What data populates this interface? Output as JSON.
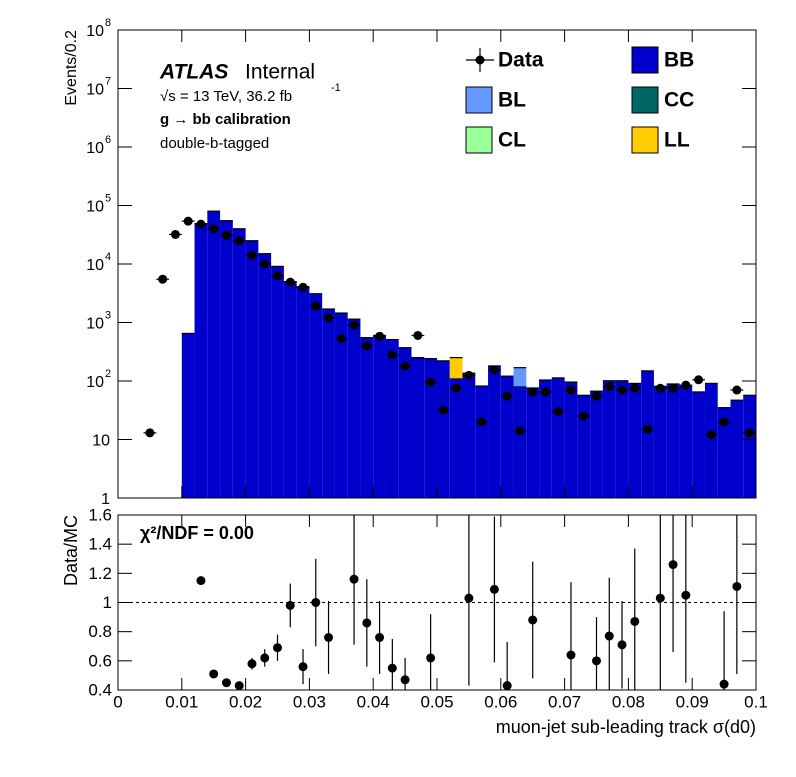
{
  "chart_data": [
    {
      "type": "stacked-histogram",
      "ylabel": "Events/0.2",
      "annotations": {
        "experiment": "ATLAS",
        "status": "Internal",
        "energy": "√s = 13 TeV, 36.2 fb",
        "energy_exponent": "-1",
        "selection": "g → bb calibration",
        "tagging": "double-b-tagged"
      },
      "log": true,
      "xlim": [
        0,
        0.1
      ],
      "ylim": [
        1,
        100000000
      ],
      "yticks": [
        1,
        10,
        {
          "value": 100,
          "label": "10",
          "exponent": "2"
        },
        {
          "value": 1000,
          "label": "10",
          "exponent": "3"
        },
        {
          "value": 10000,
          "label": "10",
          "exponent": "4"
        },
        {
          "value": 100000,
          "label": "10",
          "exponent": "5"
        },
        {
          "value": 1000000,
          "label": "10",
          "exponent": "6"
        },
        {
          "value": 10000000,
          "label": "10",
          "exponent": "7"
        },
        {
          "value": 100000000,
          "label": "10",
          "exponent": "8"
        }
      ],
      "bins": [
        0.01,
        0.012,
        0.014,
        0.016,
        0.018,
        0.02,
        0.022,
        0.024,
        0.026,
        0.028,
        0.03,
        0.032,
        0.034,
        0.036,
        0.038,
        0.04,
        0.042,
        0.044,
        0.046,
        0.048,
        0.05,
        0.052,
        0.054,
        0.056,
        0.058,
        0.06,
        0.062,
        0.064,
        0.066,
        0.068,
        0.07,
        0.072,
        0.074,
        0.076,
        0.078,
        0.08,
        0.082,
        0.084,
        0.086,
        0.088,
        0.09,
        0.092,
        0.094,
        0.096,
        0.098,
        0.1
      ],
      "series": [
        {
          "name": "BB",
          "color": "#0000cc",
          "values": [
            650,
            49000,
            80000,
            55000,
            40000,
            25000,
            15000,
            9100,
            5000,
            4100,
            3100,
            1700,
            1450,
            1140,
            550,
            600,
            510,
            370,
            250,
            240,
            220,
            110,
            135,
            81,
            180,
            120,
            80,
            75,
            103,
            112,
            95,
            56,
            66,
            100,
            100,
            90,
            148,
            80,
            88,
            80,
            64,
            90,
            34,
            46,
            56
          ]
        },
        {
          "name": "BL",
          "color": "#6699ff",
          "values": [
            0,
            0,
            0,
            0,
            0,
            0,
            0,
            0,
            0,
            0,
            0,
            0,
            0,
            0,
            0,
            0,
            0,
            0,
            0,
            0,
            0,
            0,
            0,
            0,
            0,
            0,
            88,
            0,
            0,
            0,
            0,
            0,
            0,
            0,
            0,
            0,
            0,
            0,
            0,
            0,
            0,
            0,
            0,
            0,
            0
          ]
        },
        {
          "name": "CC",
          "color": "#006666",
          "values": [
            0,
            0,
            0,
            0,
            0,
            0,
            0,
            0,
            0,
            0,
            0,
            0,
            0,
            0,
            0,
            0,
            0,
            0,
            0,
            0,
            0,
            0,
            0,
            0,
            0,
            0,
            0,
            0,
            0,
            0,
            0,
            0,
            0,
            0,
            0,
            0,
            0,
            0,
            0,
            0,
            0,
            0,
            0,
            0,
            0
          ]
        },
        {
          "name": "CL",
          "color": "#99ff99",
          "values": [
            0,
            0,
            0,
            0,
            0,
            0,
            0,
            0,
            0,
            0,
            0,
            0,
            0,
            0,
            0,
            0,
            0,
            0,
            0,
            0,
            0,
            0,
            0,
            0,
            0,
            0,
            0,
            0,
            0,
            0,
            0,
            0,
            0,
            0,
            0,
            0,
            0,
            0,
            0,
            0,
            0,
            0,
            0,
            0,
            0
          ]
        },
        {
          "name": "LL",
          "color": "#ffcc00",
          "values": [
            0,
            0,
            0,
            0,
            0,
            0,
            0,
            0,
            0,
            0,
            0,
            0,
            0,
            0,
            0,
            0,
            0,
            0,
            0,
            0,
            0,
            140,
            0,
            0,
            0,
            0,
            0,
            0,
            0,
            0,
            0,
            0,
            0,
            0,
            0,
            0,
            0,
            0,
            0,
            0,
            0,
            0,
            0,
            0,
            0
          ]
        }
      ],
      "data": {
        "name": "Data",
        "color": "#000000",
        "x": [
          0.005,
          0.007,
          0.009,
          0.011,
          0.013,
          0.015,
          0.017,
          0.019,
          0.021,
          0.023,
          0.025,
          0.027,
          0.029,
          0.031,
          0.033,
          0.035,
          0.037,
          0.039,
          0.041,
          0.043,
          0.045,
          0.047,
          0.049,
          0.051,
          0.053,
          0.055,
          0.057,
          0.059,
          0.061,
          0.063,
          0.065,
          0.067,
          0.069,
          0.071,
          0.073,
          0.075,
          0.077,
          0.079,
          0.081,
          0.083,
          0.085,
          0.087,
          0.089,
          0.091,
          0.093,
          0.095,
          0.097,
          0.099
        ],
        "values": [
          13,
          5500,
          32000,
          54000,
          48000,
          40000,
          31000,
          25000,
          14000,
          10000,
          6300,
          4900,
          4000,
          1900,
          1200,
          530,
          900,
          400,
          580,
          280,
          180,
          600,
          95,
          32,
          75,
          125,
          20,
          155,
          55,
          14,
          65,
          65,
          30,
          70,
          25,
          55,
          80,
          70,
          75,
          15,
          75,
          75,
          85,
          105,
          12,
          20,
          70,
          13
        ]
      }
    },
    {
      "type": "ratio",
      "ylabel": "Data/MC",
      "xlabel": "muon-jet sub-leading track σ(d0)",
      "annotation": "χ²/NDF = 0.00",
      "xlim": [
        0,
        0.1
      ],
      "xticks": [
        0,
        0.01,
        0.02,
        0.03,
        0.04,
        0.05,
        0.06,
        0.07,
        0.08,
        0.09,
        0.1
      ],
      "ylim": [
        0.4,
        1.6
      ],
      "yticks": [
        0.4,
        0.6,
        0.8,
        1,
        1.2,
        1.4,
        1.6
      ],
      "refline": 1,
      "x": [
        0.013,
        0.015,
        0.017,
        0.019,
        0.021,
        0.023,
        0.025,
        0.027,
        0.029,
        0.031,
        0.033,
        0.037,
        0.039,
        0.041,
        0.043,
        0.045,
        0.049,
        0.055,
        0.059,
        0.061,
        0.065,
        0.071,
        0.075,
        0.077,
        0.079,
        0.081,
        0.085,
        0.087,
        0.089,
        0.095,
        0.097
      ],
      "values": [
        1.15,
        0.51,
        0.45,
        0.43,
        0.58,
        0.62,
        0.69,
        0.98,
        0.56,
        1.0,
        0.76,
        1.16,
        0.86,
        0.76,
        0.55,
        0.47,
        0.62,
        1.03,
        1.09,
        0.43,
        0.88,
        0.64,
        0.6,
        0.77,
        0.71,
        0.87,
        1.03,
        1.26,
        1.05,
        0.44,
        1.11
      ],
      "errors": [
        0.03,
        0.02,
        0.02,
        0.02,
        0.04,
        0.06,
        0.09,
        0.15,
        0.12,
        0.3,
        0.25,
        0.45,
        0.3,
        0.25,
        0.2,
        0.15,
        0.3,
        0.6,
        0.5,
        0.3,
        0.4,
        0.5,
        0.3,
        0.4,
        0.3,
        0.5,
        0.8,
        0.6,
        0.6,
        0.5,
        0.6
      ]
    }
  ]
}
